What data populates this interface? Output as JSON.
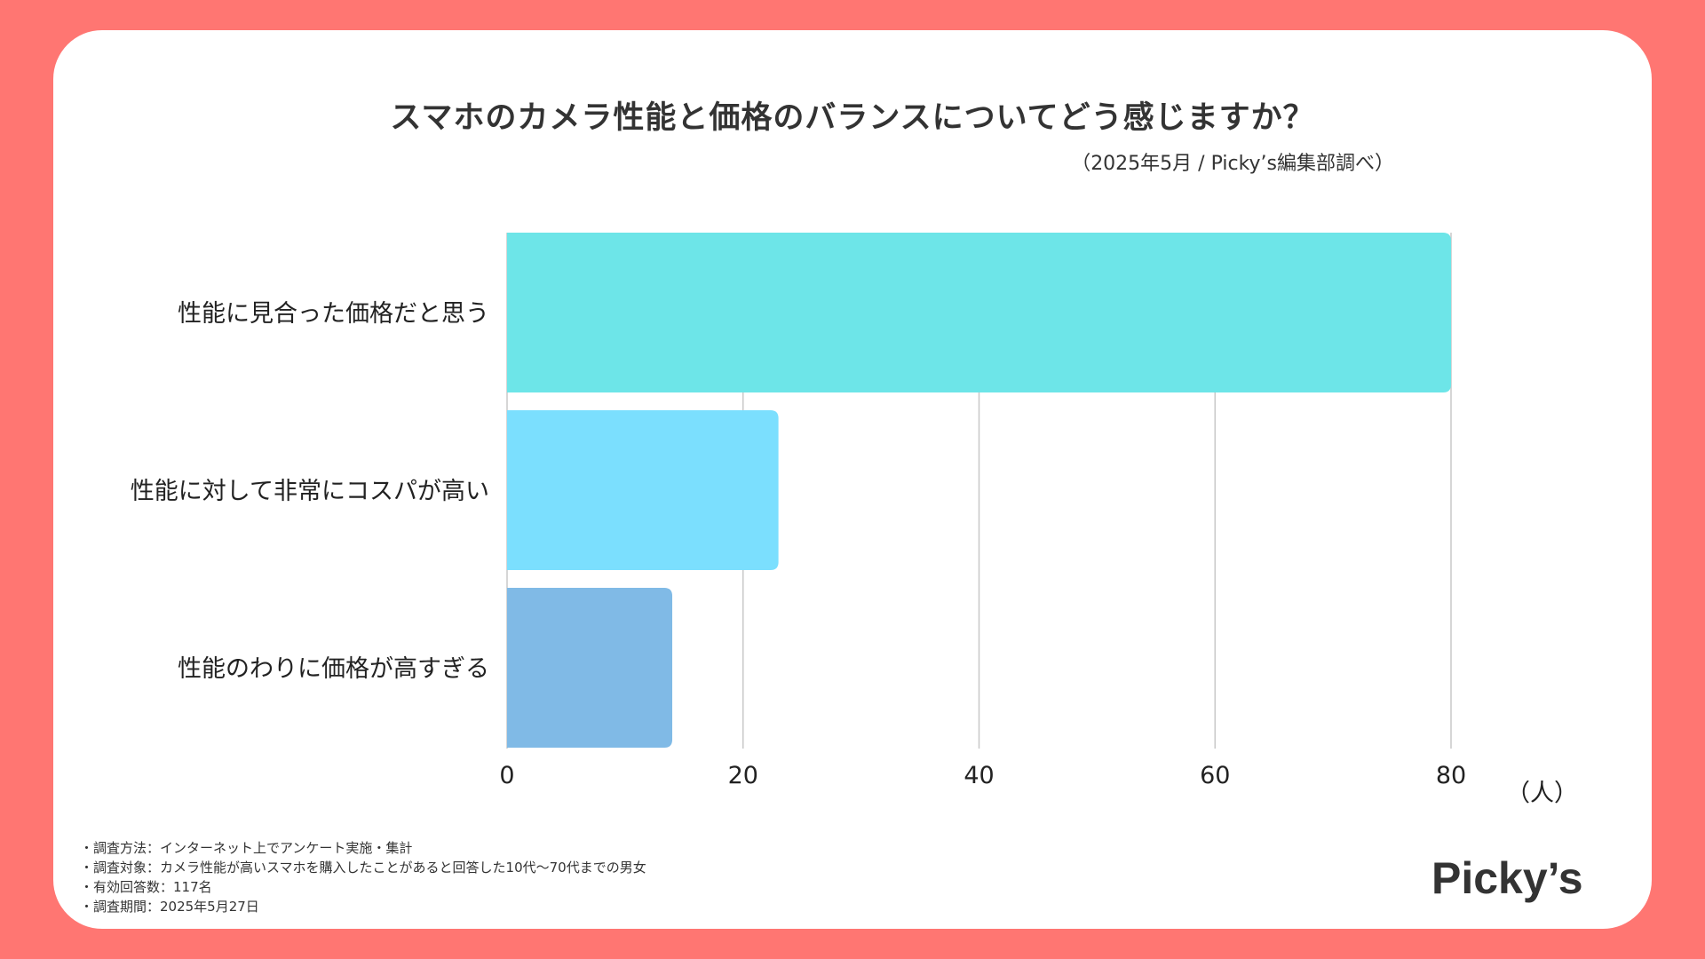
{
  "title": "スマホのカメラ性能と価格のバランスについてどう感じますか？",
  "source_note": "（2025年5月 / Picky’s編集部調べ）",
  "notes": [
    "・調査方法：インターネット上でアンケート実施・集計",
    "・調査対象：カメラ性能が高いスマホを購入したことがあると回答した10代〜70代までの男女",
    "・有効回答数：117名",
    "・調査期間：2025年5月27日"
  ],
  "logo_text": "Picky’s",
  "colors": {
    "background": "#FF7672",
    "card": "#FFFFFF",
    "text": "#333333",
    "grid": "#C8C8C8"
  },
  "chart_data": {
    "type": "bar",
    "orientation": "horizontal",
    "categories": [
      "性能に見合った価格だと思う",
      "性能に対して非常にコスパが高い",
      "性能のわりに価格が高すぎる"
    ],
    "values": [
      80,
      23,
      14
    ],
    "bar_colors": [
      "#6DE5E8",
      "#7BDFFE",
      "#80BAE6"
    ],
    "xlim": [
      0,
      80
    ],
    "xticks": [
      "0",
      "20",
      "40",
      "60",
      "80"
    ],
    "xticks_values": [
      0,
      20,
      40,
      60,
      80
    ],
    "unit": "（人）",
    "grid": true
  }
}
